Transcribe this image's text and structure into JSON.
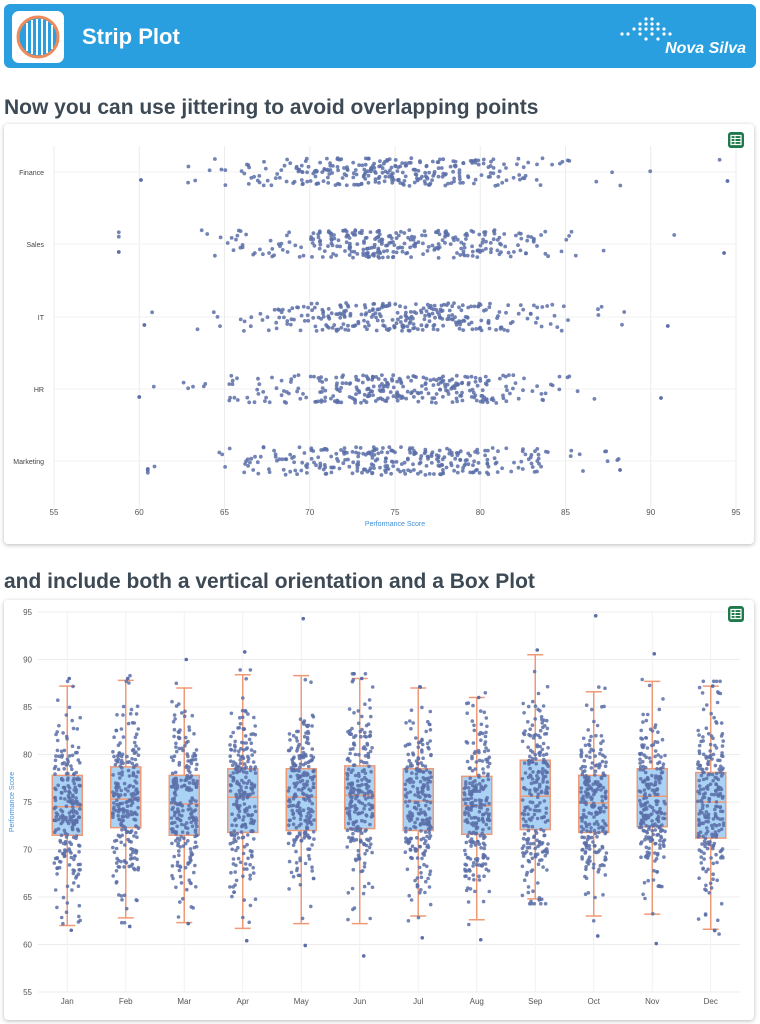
{
  "app": {
    "title": "Strip Plot",
    "brand": "Nova Silva",
    "logo_icon": "strip-plot-logo-icon",
    "brand_icon": "dot-grid-logo-icon",
    "header_color": "#2a9fdf"
  },
  "sections": {
    "first_heading": "Now you can use jittering to avoid overlapping points",
    "second_heading": "and include both a vertical orientation and a Box Plot"
  },
  "colors": {
    "point": "#5b6ea8",
    "box_fill": "#a9d2f5",
    "box_stroke": "#ef9a76",
    "axis_title": "#3f8fd8",
    "export_button": "#1f7a4b"
  },
  "chart_data": [
    {
      "type": "scatter",
      "orientation": "horizontal",
      "jitter": true,
      "xlabel": "Performance Score",
      "ylabel": "",
      "xlim": [
        55,
        95
      ],
      "xticks": [
        55,
        60,
        65,
        70,
        75,
        80,
        85,
        90,
        95
      ],
      "grid": true,
      "categories": [
        "Finance",
        "Sales",
        "IT",
        "HR",
        "Marketing"
      ],
      "series": [
        {
          "category": "Finance",
          "mean": 75,
          "sd": 5,
          "min": 60.1,
          "max": 94.5,
          "n_approx": 300
        },
        {
          "category": "Sales",
          "mean": 75,
          "sd": 5,
          "min": 58.8,
          "max": 94.3,
          "n_approx": 300
        },
        {
          "category": "IT",
          "mean": 75,
          "sd": 5,
          "min": 60.3,
          "max": 91.0,
          "n_approx": 300
        },
        {
          "category": "HR",
          "mean": 75,
          "sd": 5,
          "min": 60.0,
          "max": 90.6,
          "n_approx": 300
        },
        {
          "category": "Marketing",
          "mean": 75,
          "sd": 5,
          "min": 60.5,
          "max": 88.2,
          "n_approx": 300
        }
      ]
    },
    {
      "type": "box",
      "orientation": "vertical",
      "jitter": true,
      "points": "all",
      "ylabel": "Performance Score",
      "xlabel": "",
      "ylim": [
        55,
        95
      ],
      "yticks": [
        55,
        60,
        65,
        70,
        75,
        80,
        85,
        90,
        95
      ],
      "grid": true,
      "categories": [
        "Jan",
        "Feb",
        "Mar",
        "Apr",
        "May",
        "Jun",
        "Jul",
        "Aug",
        "Sep",
        "Oct",
        "Nov",
        "Dec"
      ],
      "boxes": [
        {
          "category": "Jan",
          "lower_fence": 62.0,
          "q1": 71.5,
          "median": 74.5,
          "q3": 77.8,
          "upper_fence": 87.2,
          "min": 61.5,
          "max": 88.0
        },
        {
          "category": "Feb",
          "lower_fence": 62.8,
          "q1": 72.3,
          "median": 75.3,
          "q3": 78.7,
          "upper_fence": 87.8,
          "min": 61.9,
          "max": 88.0
        },
        {
          "category": "Mar",
          "lower_fence": 62.3,
          "q1": 71.5,
          "median": 74.8,
          "q3": 77.8,
          "upper_fence": 87.0,
          "min": 62.2,
          "max": 90.0
        },
        {
          "category": "Apr",
          "lower_fence": 61.7,
          "q1": 71.8,
          "median": 75.5,
          "q3": 78.5,
          "upper_fence": 88.4,
          "min": 60.4,
          "max": 90.8
        },
        {
          "category": "May",
          "lower_fence": 62.2,
          "q1": 72.0,
          "median": 75.5,
          "q3": 78.5,
          "upper_fence": 88.3,
          "min": 59.9,
          "max": 94.3
        },
        {
          "category": "Jun",
          "lower_fence": 62.2,
          "q1": 72.2,
          "median": 75.7,
          "q3": 78.8,
          "upper_fence": 88.0,
          "min": 58.8,
          "max": 88.0
        },
        {
          "category": "Jul",
          "lower_fence": 63.0,
          "q1": 72.0,
          "median": 75.1,
          "q3": 78.5,
          "upper_fence": 87.0,
          "min": 60.7,
          "max": 87.1
        },
        {
          "category": "Aug",
          "lower_fence": 62.6,
          "q1": 71.6,
          "median": 74.6,
          "q3": 77.7,
          "upper_fence": 86.0,
          "min": 60.5,
          "max": 86.0
        },
        {
          "category": "Sep",
          "lower_fence": 64.8,
          "q1": 72.1,
          "median": 75.6,
          "q3": 79.4,
          "upper_fence": 90.5,
          "min": 64.7,
          "max": 91.0
        },
        {
          "category": "Oct",
          "lower_fence": 63.0,
          "q1": 71.8,
          "median": 74.9,
          "q3": 77.8,
          "upper_fence": 86.6,
          "min": 60.9,
          "max": 94.6
        },
        {
          "category": "Nov",
          "lower_fence": 63.2,
          "q1": 72.4,
          "median": 75.6,
          "q3": 78.5,
          "upper_fence": 87.7,
          "min": 60.1,
          "max": 90.6
        },
        {
          "category": "Dec",
          "lower_fence": 61.6,
          "q1": 71.2,
          "median": 75.0,
          "q3": 78.1,
          "upper_fence": 87.2,
          "min": 61.5,
          "max": 87.2
        }
      ]
    }
  ]
}
